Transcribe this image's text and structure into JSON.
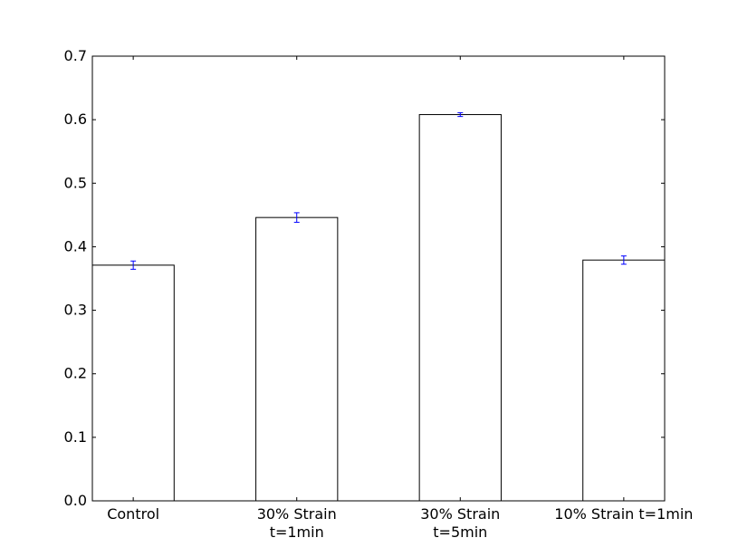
{
  "chart_data": {
    "type": "bar",
    "title": "",
    "xlabel": "",
    "ylabel": "",
    "categories": [
      [
        "Control"
      ],
      [
        "30% Strain",
        "t=1min"
      ],
      [
        "30% Strain",
        "t=5min"
      ],
      [
        "10% Strain t=1min"
      ]
    ],
    "values": [
      0.371,
      0.446,
      0.608,
      0.379
    ],
    "errors": [
      0.0065,
      0.0075,
      0.003,
      0.0065
    ],
    "ylim": [
      0.0,
      0.7
    ],
    "yticks": [
      "0.0",
      "0.1",
      "0.2",
      "0.3",
      "0.4",
      "0.5",
      "0.6",
      "0.7"
    ],
    "grid": false,
    "colors": {
      "bar_fill": "#ffffff",
      "bar_edge": "#000000",
      "error_bar": "#0000ff",
      "axes": "#000000"
    }
  }
}
